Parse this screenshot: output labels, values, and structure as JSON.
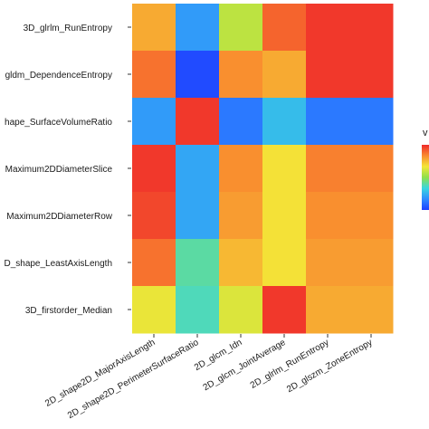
{
  "chart_data": {
    "type": "heatmap",
    "rows": [
      "3D_glrlm_RunEntropy",
      "gldm_DependenceEntropy",
      "hape_SurfaceVolumeRatio",
      "Maximum2DDiameterSlice",
      "Maximum2DDiameterRow",
      "D_shape_LeastAxisLength",
      "3D_firstorder_Median"
    ],
    "columns": [
      "2D_shape2D_MajorAxisLength",
      "2D_shape2D_PerimeterSurfaceRatio",
      "2D_glcm_Idn",
      "2D_glcm_JointAverage",
      "2D_glrlm_RunEntropy",
      "2D_glszm_ZoneEntropy"
    ],
    "values": [
      [
        0.55,
        -0.6,
        0.15,
        0.8,
        0.95,
        0.95
      ],
      [
        0.75,
        -0.95,
        0.65,
        0.55,
        0.95,
        0.95
      ],
      [
        -0.6,
        0.95,
        -0.75,
        -0.45,
        -0.75,
        -0.75
      ],
      [
        0.95,
        -0.55,
        0.65,
        0.35,
        0.7,
        0.7
      ],
      [
        0.9,
        -0.55,
        0.6,
        0.35,
        0.65,
        0.65
      ],
      [
        0.75,
        -0.2,
        0.5,
        0.35,
        0.6,
        0.6
      ],
      [
        0.3,
        -0.25,
        0.25,
        0.95,
        0.55,
        0.55
      ]
    ],
    "legend": {
      "title": "v",
      "position": "right"
    },
    "colorscale": [
      "#1f3fff",
      "#2f8cff",
      "#39d6df",
      "#8fe04a",
      "#f4e637",
      "#f98a2f",
      "#ef2a2a"
    ]
  }
}
